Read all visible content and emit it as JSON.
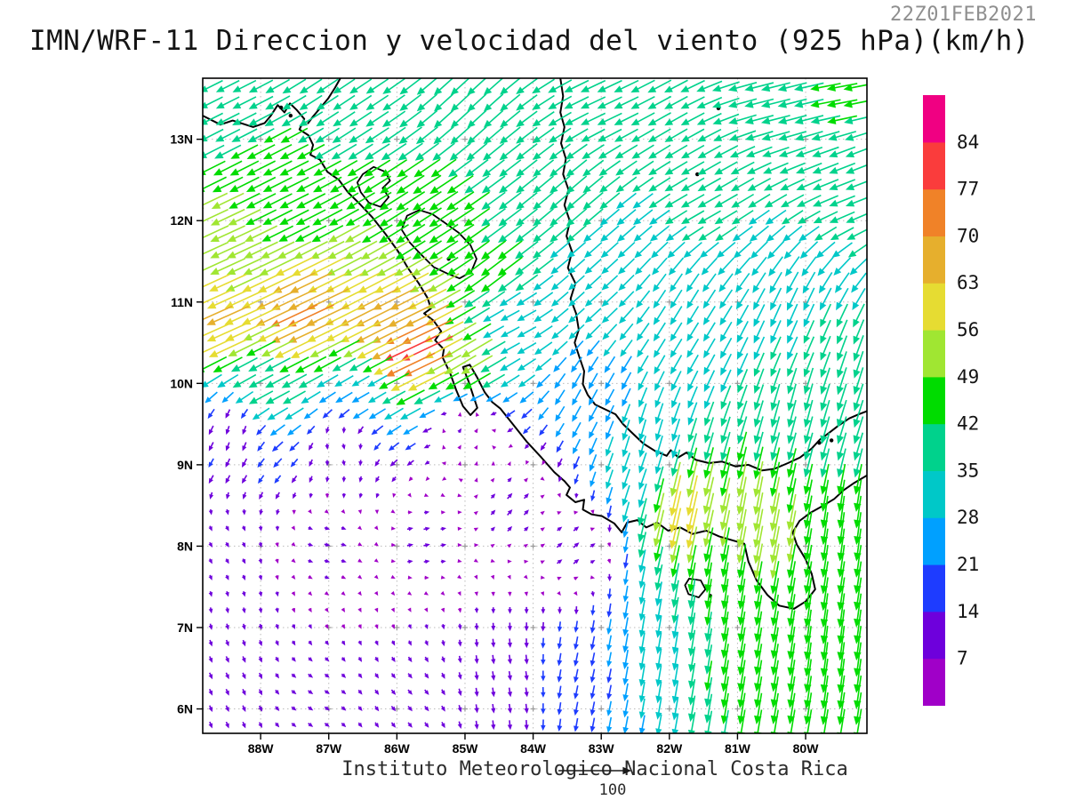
{
  "header": {
    "title": "IMN/WRF-11 Direccion y velocidad del viento (925 hPa)(km/h)",
    "timestamp": "22Z01FEB2021"
  },
  "footer": {
    "credit": "Instituto Meteorologico Nacional Costa Rica",
    "reference_label": "100"
  },
  "style": {
    "land_outline": "#000000",
    "grid_color": "#bbbbbb",
    "grid_cross_color": "#999999",
    "frame_color": "#000000",
    "timestamp_color": "#8f8f8f",
    "text_color": "#141414"
  },
  "chart_data": {
    "type": "wind_vector_map",
    "title": "IMN/WRF-11 Direccion y velocidad del viento (925 hPa)(km/h)",
    "model": "IMN/WRF-11",
    "variable": "Direccion y velocidad del viento",
    "level": "925 hPa",
    "units": "km/h",
    "valid_time": "22Z01FEB2021",
    "lon_range": [
      -88.85,
      -79.1
    ],
    "lat_range": [
      5.7,
      13.75
    ],
    "grid": {
      "nx": 40,
      "ny": 40
    },
    "reference_vector": {
      "speed": 100,
      "label": "100"
    },
    "x_ticks": [
      {
        "label": "88W",
        "lon": -88
      },
      {
        "label": "87W",
        "lon": -87
      },
      {
        "label": "86W",
        "lon": -86
      },
      {
        "label": "85W",
        "lon": -85
      },
      {
        "label": "84W",
        "lon": -84
      },
      {
        "label": "83W",
        "lon": -83
      },
      {
        "label": "82W",
        "lon": -82
      },
      {
        "label": "81W",
        "lon": -81
      },
      {
        "label": "80W",
        "lon": -80
      }
    ],
    "y_ticks": [
      {
        "label": "6N",
        "lat": 6
      },
      {
        "label": "7N",
        "lat": 7
      },
      {
        "label": "8N",
        "lat": 8
      },
      {
        "label": "9N",
        "lat": 9
      },
      {
        "label": "10N",
        "lat": 10
      },
      {
        "label": "11N",
        "lat": 11
      },
      {
        "label": "12N",
        "lat": 12
      },
      {
        "label": "13N",
        "lat": 13
      }
    ],
    "colorbar": {
      "levels": [
        7,
        14,
        21,
        28,
        35,
        42,
        49,
        56,
        63,
        70,
        77,
        84
      ],
      "colors": [
        "#A000C8",
        "#6E00DC",
        "#1E3CFF",
        "#00A0FF",
        "#00C8C8",
        "#00D28C",
        "#00DC00",
        "#A0E632",
        "#E6DC32",
        "#E6AF2D",
        "#F08228",
        "#FA3C3C",
        "#F00082"
      ],
      "units": "km/h"
    },
    "wind_control_points": [
      [
        -88.6,
        13.6,
        -32,
        -16
      ],
      [
        -86.8,
        13.6,
        -30,
        -20
      ],
      [
        -85.0,
        13.4,
        -26,
        -24
      ],
      [
        -83.0,
        13.5,
        -34,
        -16
      ],
      [
        -80.5,
        13.5,
        -40,
        -10
      ],
      [
        -79.5,
        13.6,
        -42,
        -8
      ],
      [
        -79.3,
        12.5,
        -36,
        -14
      ],
      [
        -81.5,
        12.3,
        -32,
        -18
      ],
      [
        -83.5,
        12.2,
        -28,
        -24
      ],
      [
        -85.5,
        12.0,
        -40,
        -26
      ],
      [
        -87.6,
        12.4,
        -40,
        -20
      ],
      [
        -88.6,
        11.6,
        -48,
        -22
      ],
      [
        -88.6,
        10.8,
        -58,
        -26
      ],
      [
        -87.4,
        10.8,
        -64,
        -30
      ],
      [
        -86.2,
        10.7,
        -60,
        -30
      ],
      [
        -85.7,
        10.45,
        -72,
        -34
      ],
      [
        -85.0,
        10.3,
        -44,
        -26
      ],
      [
        -84.5,
        11.4,
        -34,
        -26
      ],
      [
        -84.3,
        10.7,
        -26,
        -14
      ],
      [
        -83.2,
        11.1,
        -22,
        -20
      ],
      [
        -81.8,
        10.8,
        -16,
        -26
      ],
      [
        -80.2,
        10.6,
        -14,
        -32
      ],
      [
        -79.3,
        9.8,
        -12,
        -38
      ],
      [
        -83.2,
        9.8,
        -12,
        -22
      ],
      [
        -82.5,
        9.0,
        -10,
        -28
      ],
      [
        -85.0,
        9.4,
        4,
        6
      ],
      [
        -86.8,
        9.2,
        2,
        -8
      ],
      [
        -88.4,
        9.4,
        -4,
        -12
      ],
      [
        -88.5,
        8.0,
        4,
        -7
      ],
      [
        -87.0,
        8.0,
        8,
        -2
      ],
      [
        -85.6,
        8.1,
        9,
        2
      ],
      [
        -84.3,
        8.5,
        7,
        8
      ],
      [
        -83.4,
        8.0,
        8,
        7
      ],
      [
        -88.5,
        6.3,
        4,
        -9
      ],
      [
        -87.2,
        6.1,
        7,
        -5
      ],
      [
        -85.8,
        6.1,
        6,
        -7
      ],
      [
        -84.3,
        6.3,
        2,
        -13
      ],
      [
        -83.2,
        6.4,
        -4,
        -19
      ],
      [
        -82.2,
        6.6,
        -5,
        -30
      ],
      [
        -81.0,
        6.4,
        -7,
        -44
      ],
      [
        -79.6,
        6.8,
        -6,
        -48
      ],
      [
        -79.4,
        8.2,
        -6,
        -45
      ],
      [
        -80.7,
        8.35,
        -10,
        -54
      ],
      [
        -81.85,
        8.45,
        -13,
        -58
      ],
      [
        -82.4,
        9.2,
        -8,
        -30
      ],
      [
        -81.3,
        7.3,
        -6,
        -42
      ],
      [
        -80.1,
        9.6,
        -10,
        -38
      ],
      [
        -87.9,
        10.0,
        -34,
        -18
      ],
      [
        -86.5,
        9.9,
        -24,
        -14
      ]
    ],
    "coastlines": [
      [
        [
          -88.85,
          13.29
        ],
        [
          -88.59,
          13.18
        ],
        [
          -88.41,
          13.23
        ],
        [
          -88.11,
          13.15
        ],
        [
          -87.94,
          13.2
        ],
        [
          -87.85,
          13.29
        ],
        [
          -87.75,
          13.42
        ],
        [
          -87.65,
          13.33
        ],
        [
          -87.57,
          13.44
        ],
        [
          -87.47,
          13.36
        ],
        [
          -87.36,
          13.25
        ],
        [
          -87.43,
          13.12
        ],
        [
          -87.3,
          13.05
        ],
        [
          -87.23,
          12.93
        ],
        [
          -87.27,
          12.81
        ],
        [
          -87.13,
          12.75
        ],
        [
          -87.02,
          12.6
        ],
        [
          -86.85,
          12.5
        ],
        [
          -86.72,
          12.35
        ],
        [
          -86.55,
          12.21
        ],
        [
          -86.36,
          12.04
        ],
        [
          -86.17,
          11.84
        ],
        [
          -85.98,
          11.62
        ],
        [
          -85.84,
          11.42
        ],
        [
          -85.68,
          11.23
        ],
        [
          -85.55,
          11.05
        ],
        [
          -85.5,
          10.92
        ],
        [
          -85.6,
          10.86
        ],
        [
          -85.46,
          10.77
        ],
        [
          -85.35,
          10.64
        ],
        [
          -85.44,
          10.53
        ],
        [
          -85.31,
          10.42
        ],
        [
          -85.33,
          10.32
        ],
        [
          -85.22,
          10.13
        ],
        [
          -85.13,
          9.92
        ],
        [
          -85.03,
          9.72
        ],
        [
          -84.92,
          9.61
        ],
        [
          -84.82,
          9.7
        ],
        [
          -84.88,
          9.85
        ],
        [
          -84.95,
          10.03
        ],
        [
          -85.03,
          10.2
        ],
        [
          -84.93,
          10.23
        ],
        [
          -84.82,
          10.07
        ],
        [
          -84.71,
          9.89
        ],
        [
          -84.6,
          9.77
        ],
        [
          -84.48,
          9.69
        ],
        [
          -84.29,
          9.49
        ],
        [
          -84.09,
          9.28
        ],
        [
          -83.88,
          9.09
        ],
        [
          -83.69,
          8.91
        ],
        [
          -83.54,
          8.8
        ],
        [
          -83.46,
          8.72
        ],
        [
          -83.51,
          8.63
        ],
        [
          -83.38,
          8.54
        ],
        [
          -83.25,
          8.57
        ],
        [
          -83.27,
          8.45
        ],
        [
          -83.14,
          8.39
        ],
        [
          -82.99,
          8.37
        ],
        [
          -82.81,
          8.28
        ],
        [
          -82.7,
          8.17
        ],
        [
          -82.62,
          8.29
        ],
        [
          -82.47,
          8.32
        ],
        [
          -82.34,
          8.23
        ],
        [
          -82.18,
          8.29
        ],
        [
          -82.02,
          8.19
        ],
        [
          -81.84,
          8.23
        ],
        [
          -81.66,
          8.15
        ],
        [
          -81.46,
          8.19
        ],
        [
          -81.27,
          8.12
        ],
        [
          -81.11,
          8.08
        ],
        [
          -80.9,
          8.03
        ],
        [
          -80.84,
          7.81
        ],
        [
          -80.72,
          7.58
        ],
        [
          -80.56,
          7.4
        ],
        [
          -80.39,
          7.27
        ],
        [
          -80.17,
          7.23
        ],
        [
          -80.0,
          7.32
        ],
        [
          -79.86,
          7.47
        ],
        [
          -79.91,
          7.66
        ],
        [
          -80.0,
          7.84
        ],
        [
          -80.13,
          8.02
        ],
        [
          -80.19,
          8.17
        ],
        [
          -80.09,
          8.31
        ],
        [
          -79.93,
          8.41
        ],
        [
          -79.74,
          8.5
        ],
        [
          -79.58,
          8.58
        ],
        [
          -79.44,
          8.69
        ],
        [
          -79.3,
          8.77
        ],
        [
          -79.1,
          8.87
        ]
      ],
      [
        [
          -86.83,
          13.75
        ],
        [
          -86.91,
          13.63
        ],
        [
          -87.01,
          13.5
        ],
        [
          -87.13,
          13.38
        ],
        [
          -87.23,
          13.28
        ],
        [
          -87.31,
          13.19
        ]
      ],
      [
        [
          -83.6,
          13.75
        ],
        [
          -83.56,
          13.53
        ],
        [
          -83.6,
          13.33
        ],
        [
          -83.54,
          13.15
        ],
        [
          -83.59,
          12.95
        ],
        [
          -83.52,
          12.76
        ],
        [
          -83.56,
          12.57
        ],
        [
          -83.48,
          12.38
        ],
        [
          -83.54,
          12.19
        ],
        [
          -83.46,
          11.99
        ],
        [
          -83.51,
          11.81
        ],
        [
          -83.43,
          11.62
        ],
        [
          -83.49,
          11.42
        ],
        [
          -83.38,
          11.23
        ],
        [
          -83.45,
          11.04
        ],
        [
          -83.37,
          10.86
        ],
        [
          -83.33,
          10.66
        ],
        [
          -83.39,
          10.5
        ],
        [
          -83.32,
          10.32
        ],
        [
          -83.25,
          10.15
        ],
        [
          -83.27,
          9.99
        ],
        [
          -83.2,
          9.86
        ],
        [
          -83.09,
          9.74
        ],
        [
          -82.94,
          9.68
        ],
        [
          -82.79,
          9.62
        ],
        [
          -82.68,
          9.5
        ],
        [
          -82.52,
          9.37
        ],
        [
          -82.38,
          9.26
        ],
        [
          -82.21,
          9.17
        ],
        [
          -82.04,
          9.11
        ],
        [
          -81.98,
          9.18
        ],
        [
          -81.87,
          9.09
        ],
        [
          -81.75,
          9.15
        ],
        [
          -81.61,
          9.06
        ],
        [
          -81.42,
          9.02
        ],
        [
          -81.23,
          9.04
        ],
        [
          -81.03,
          8.98
        ],
        [
          -80.84,
          9.0
        ],
        [
          -80.64,
          8.93
        ],
        [
          -80.46,
          8.95
        ],
        [
          -80.26,
          9.02
        ],
        [
          -80.08,
          9.09
        ],
        [
          -79.91,
          9.2
        ],
        [
          -79.79,
          9.31
        ],
        [
          -79.66,
          9.39
        ],
        [
          -79.52,
          9.48
        ],
        [
          -79.36,
          9.57
        ],
        [
          -79.22,
          9.62
        ],
        [
          -79.1,
          9.66
        ]
      ]
    ],
    "lakes": [
      [
        [
          -85.85,
          12.06
        ],
        [
          -85.67,
          12.13
        ],
        [
          -85.48,
          12.08
        ],
        [
          -85.29,
          11.97
        ],
        [
          -85.09,
          11.85
        ],
        [
          -84.92,
          11.7
        ],
        [
          -84.83,
          11.53
        ],
        [
          -84.91,
          11.37
        ],
        [
          -85.08,
          11.29
        ],
        [
          -85.26,
          11.35
        ],
        [
          -85.46,
          11.43
        ],
        [
          -85.64,
          11.58
        ],
        [
          -85.81,
          11.73
        ],
        [
          -85.93,
          11.89
        ]
      ],
      [
        [
          -86.5,
          12.57
        ],
        [
          -86.34,
          12.66
        ],
        [
          -86.17,
          12.6
        ],
        [
          -86.1,
          12.49
        ],
        [
          -86.21,
          12.4
        ],
        [
          -86.12,
          12.29
        ],
        [
          -86.24,
          12.17
        ],
        [
          -86.41,
          12.22
        ],
        [
          -86.53,
          12.35
        ],
        [
          -86.58,
          12.47
        ]
      ]
    ],
    "island_loops": [
      [
        [
          -81.71,
          7.6
        ],
        [
          -81.54,
          7.58
        ],
        [
          -81.47,
          7.47
        ],
        [
          -81.57,
          7.37
        ],
        [
          -81.72,
          7.41
        ],
        [
          -81.77,
          7.52
        ]
      ]
    ],
    "island_dots": [
      [
        -81.28,
        13.38
      ],
      [
        -81.59,
        12.57
      ],
      [
        -87.7,
        13.39
      ],
      [
        -87.56,
        13.29
      ],
      [
        -81.4,
        7.39
      ],
      [
        -85.24,
        11.53
      ],
      [
        -79.62,
        9.3
      ],
      [
        -79.8,
        9.27
      ]
    ]
  }
}
